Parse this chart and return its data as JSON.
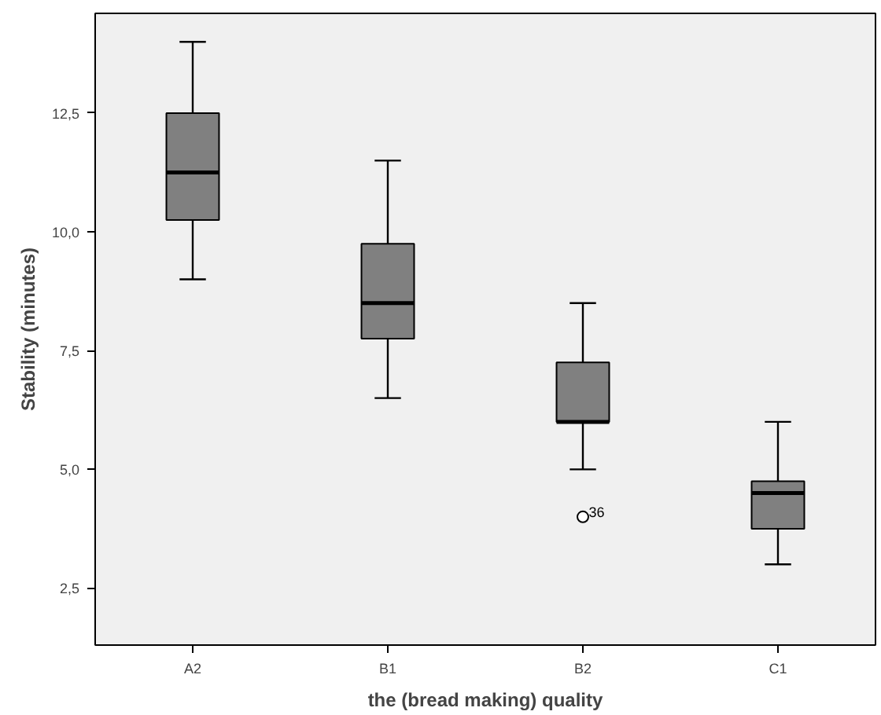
{
  "chart_data": {
    "type": "box",
    "xlabel": "the (bread making) quality",
    "ylabel": "Stability (minutes)",
    "categories": [
      "A2",
      "B1",
      "B2",
      "C1"
    ],
    "color": "#808080",
    "boxes": [
      {
        "low": 9,
        "q1": 10.25,
        "median": 11.25,
        "q3": 12.5,
        "high": 14
      },
      {
        "low": 6.5,
        "q1": 7.75,
        "median": 8.5,
        "q3": 9.75,
        "high": 11.5
      },
      {
        "low": 5,
        "q1": 6,
        "median": 6,
        "q3": 7.25,
        "high": 8.5,
        "outliers": [
          4
        ]
      },
      {
        "low": 3,
        "q1": 3.75,
        "median": 4.5,
        "q3": 4.75,
        "high": 6
      }
    ],
    "ylim": [
      1.3,
      14.6
    ],
    "yticks": [
      {
        "value": 2.5,
        "label": "2,5"
      },
      {
        "value": 5,
        "label": "5,0"
      },
      {
        "value": 7.5,
        "label": "7,5"
      },
      {
        "value": 10,
        "label": "10,0"
      },
      {
        "value": 12.5,
        "label": "12,5"
      }
    ],
    "annotations": [
      "36"
    ],
    "grid": false
  }
}
